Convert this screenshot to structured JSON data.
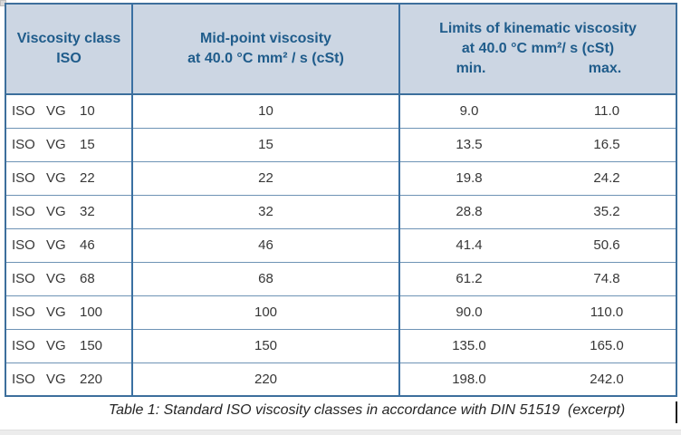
{
  "colors": {
    "header_bg": "#ccd6e3",
    "header_text": "#1f5c8b",
    "border_blue": "#3d6f9c",
    "body_text": "#373737"
  },
  "table": {
    "header": {
      "col1_line1": "Viscosity class",
      "col1_line2": "ISO",
      "col2_line1": "Mid-point viscosity",
      "col2_line2": "at 40.0 °C mm² / s (cSt)",
      "col3_line1": "Limits of kinematic viscosity",
      "col3_line2": "at 40.0 °C mm²/ s (cSt)",
      "min_label": "min.",
      "max_label": "max."
    },
    "rows": [
      {
        "std": "ISO",
        "grade": "VG",
        "class_num": "10",
        "mid": "10",
        "min": "9.0",
        "max": "11.0"
      },
      {
        "std": "ISO",
        "grade": "VG",
        "class_num": "15",
        "mid": "15",
        "min": "13.5",
        "max": "16.5"
      },
      {
        "std": "ISO",
        "grade": "VG",
        "class_num": "22",
        "mid": "22",
        "min": "19.8",
        "max": "24.2"
      },
      {
        "std": "ISO",
        "grade": "VG",
        "class_num": "32",
        "mid": "32",
        "min": "28.8",
        "max": "35.2"
      },
      {
        "std": "ISO",
        "grade": "VG",
        "class_num": "46",
        "mid": "46",
        "min": "41.4",
        "max": "50.6"
      },
      {
        "std": "ISO",
        "grade": "VG",
        "class_num": "68",
        "mid": "68",
        "min": "61.2",
        "max": "74.8"
      },
      {
        "std": "ISO",
        "grade": "VG",
        "class_num": "100",
        "mid": "100",
        "min": "90.0",
        "max": "110.0"
      },
      {
        "std": "ISO",
        "grade": "VG",
        "class_num": "150",
        "mid": "150",
        "min": "135.0",
        "max": "165.0"
      },
      {
        "std": "ISO",
        "grade": "VG",
        "class_num": "220",
        "mid": "220",
        "min": "198.0",
        "max": "242.0"
      }
    ]
  },
  "caption": "Table 1: Standard ISO viscosity classes in accordance with DIN 51519  (excerpt)"
}
